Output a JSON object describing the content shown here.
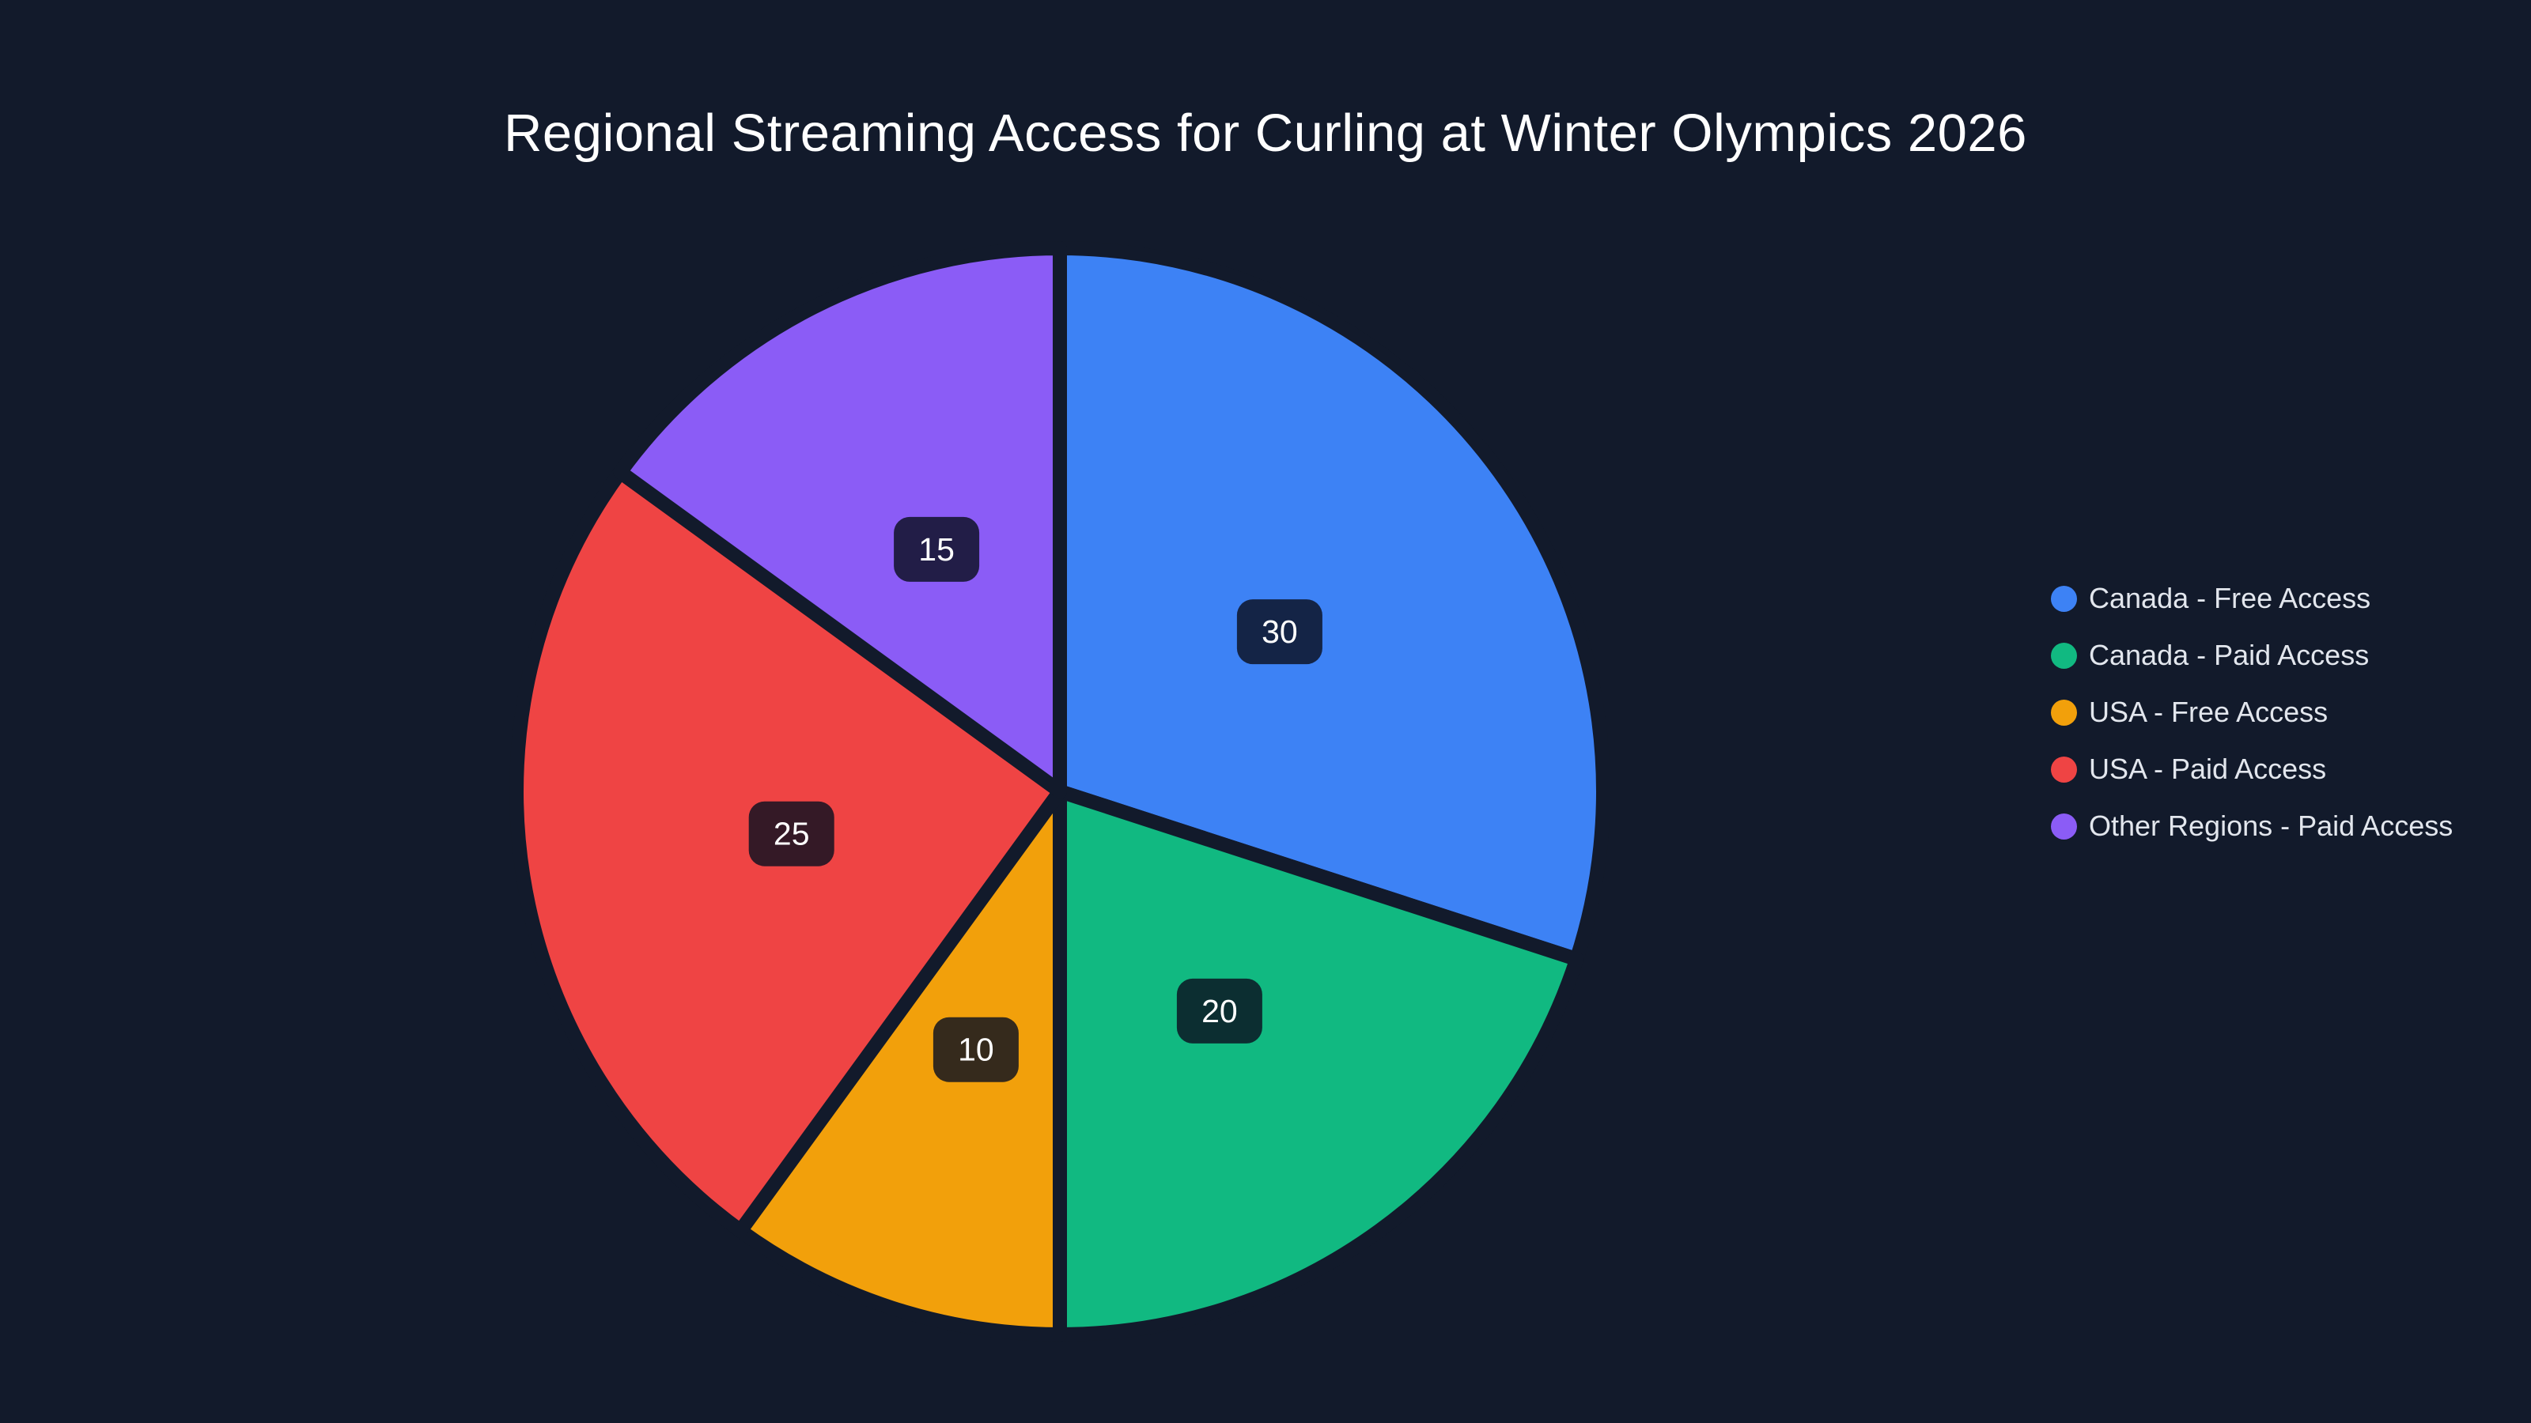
{
  "page": {
    "background": "#121a2b"
  },
  "chart_data": {
    "type": "pie",
    "title": "Regional Streaming Access for Curling at Winter Olympics 2026",
    "labels": [
      "Canada - Free Access",
      "Canada - Paid Access",
      "USA - Free Access",
      "USA - Paid Access",
      "Other Regions - Paid Access"
    ],
    "values": [
      30,
      20,
      10,
      25,
      15
    ],
    "colors": [
      "#3d82f5",
      "#11b981",
      "#f2a00b",
      "#ef4444",
      "#8b5cf6"
    ],
    "direction": "clockwise",
    "rotation_deg": 0,
    "total": 100,
    "value_labels_shown": true,
    "value_label_style": {
      "bg": "rgba(11,16,32,0.82)",
      "text_color": "#ffffff"
    },
    "slice_gap_color": "#121a2b",
    "legend_position": "right",
    "legend_text_color": "#e2e6ed",
    "title_color": "#ffffff"
  }
}
